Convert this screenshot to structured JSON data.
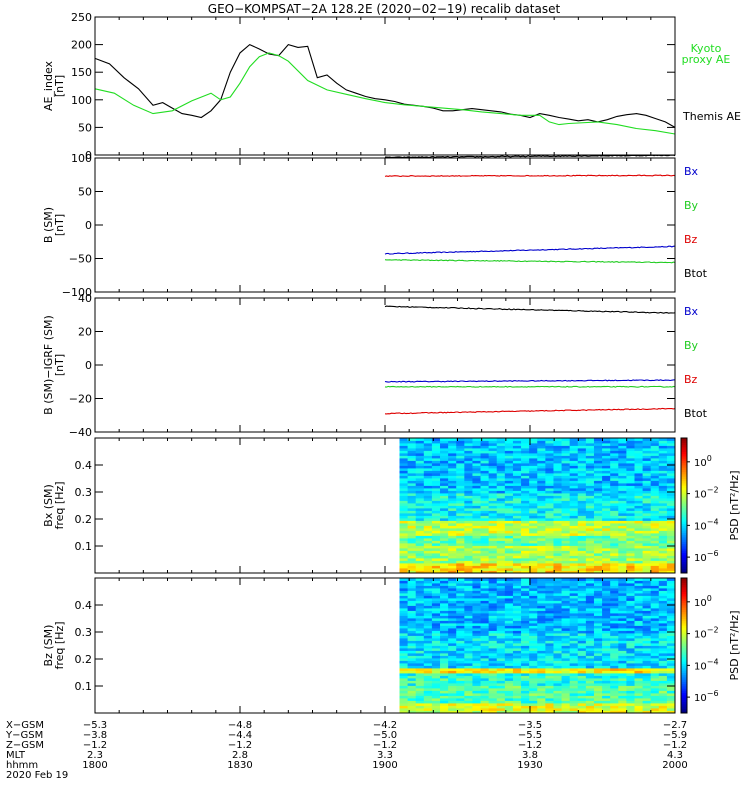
{
  "title": "GEO−KOMPSAT−2A 128.2E (2020−02−19) recalib dataset",
  "panels": [
    {
      "id": "ae",
      "ylabel": [
        "AE_index",
        "[nT]"
      ],
      "yticks": [
        "0",
        "50",
        "100",
        "150",
        "200",
        "250"
      ],
      "ylim": [
        0,
        250
      ],
      "legend": [
        {
          "text": "Kyoto",
          "color": "#22dd22"
        },
        {
          "text": "proxy AE",
          "color": "#22dd22"
        },
        {
          "text": "Themis AE",
          "color": "#000000"
        }
      ]
    },
    {
      "id": "bsm",
      "ylabel": [
        "B (SM)",
        "[nT]"
      ],
      "yticks": [
        "−100",
        "−50",
        "0",
        "50",
        "100"
      ],
      "ylim": [
        -100,
        100
      ],
      "legend": [
        {
          "text": "Bx",
          "color": "#0000cc"
        },
        {
          "text": "By",
          "color": "#22cc22"
        },
        {
          "text": "Bz",
          "color": "#dd0000"
        },
        {
          "text": "Btot",
          "color": "#000000"
        }
      ]
    },
    {
      "id": "bigrf",
      "ylabel": [
        "B (SM)−IGRF (SM)",
        "[nT]"
      ],
      "yticks": [
        "−40",
        "−20",
        "0",
        "20",
        "40"
      ],
      "ylim": [
        -40,
        40
      ],
      "legend": [
        {
          "text": "Bx",
          "color": "#0000cc"
        },
        {
          "text": "By",
          "color": "#22cc22"
        },
        {
          "text": "Bz",
          "color": "#dd0000"
        },
        {
          "text": "Btot",
          "color": "#000000"
        }
      ]
    },
    {
      "id": "specx",
      "ylabel": [
        "Bx (SM)",
        "freq [Hz]"
      ],
      "yticks": [
        "0.1",
        "0.2",
        "0.3",
        "0.4"
      ],
      "ylim": [
        0,
        0.5
      ]
    },
    {
      "id": "specz",
      "ylabel": [
        "Bz (SM)",
        "freq [Hz]"
      ],
      "yticks": [
        "0.1",
        "0.2",
        "0.3",
        "0.4"
      ],
      "ylim": [
        0,
        0.5
      ]
    }
  ],
  "colorbar": {
    "label": "PSD [nT²/Hz]",
    "ticks": [
      {
        "base": "10",
        "exp": "0",
        "value": 0
      },
      {
        "base": "10",
        "exp": "−2",
        "value": -2
      },
      {
        "base": "10",
        "exp": "−4",
        "value": -4
      },
      {
        "base": "10",
        "exp": "−6",
        "value": -6
      }
    ],
    "range": [
      -7,
      1.5
    ]
  },
  "ephemeris": {
    "row_labels": [
      "X−GSM",
      "Y−GSM",
      "Z−GSM",
      "MLT",
      "hhmm",
      "2020 Feb 19"
    ],
    "columns": [
      [
        "−5.3",
        "−3.8",
        "−1.2",
        "2.3",
        "1800"
      ],
      [
        "−4.8",
        "−4.4",
        "−1.2",
        "2.8",
        "1830"
      ],
      [
        "−4.2",
        "−5.0",
        "−1.2",
        "3.3",
        "1900"
      ],
      [
        "−3.5",
        "−5.5",
        "−1.2",
        "3.8",
        "1930"
      ],
      [
        "−2.7",
        "−5.9",
        "−1.2",
        "4.3",
        "2000"
      ]
    ]
  },
  "chart_data": [
    {
      "type": "line",
      "x_range_minutes_after_1800": [
        0,
        120
      ],
      "series": [
        {
          "name": "Themis AE",
          "color": "#000000",
          "x": [
            0,
            3,
            6,
            9,
            12,
            14,
            16,
            18,
            20,
            22,
            24,
            26,
            28,
            30,
            32,
            34,
            36,
            38,
            40,
            42,
            44,
            46,
            48,
            50,
            52,
            54,
            56,
            58,
            60,
            62,
            64,
            66,
            68,
            70,
            72,
            74,
            76,
            78,
            80,
            82,
            84,
            86,
            88,
            90,
            92,
            94,
            96,
            98,
            100,
            102,
            104,
            106,
            108,
            110,
            112,
            114,
            116,
            118,
            120
          ],
          "y": [
            175,
            165,
            140,
            120,
            90,
            95,
            85,
            75,
            72,
            68,
            80,
            100,
            150,
            185,
            200,
            192,
            183,
            180,
            200,
            195,
            197,
            140,
            145,
            130,
            118,
            112,
            106,
            102,
            100,
            97,
            92,
            90,
            88,
            85,
            80,
            80,
            82,
            84,
            82,
            80,
            78,
            74,
            72,
            68,
            75,
            72,
            68,
            65,
            62,
            64,
            60,
            64,
            70,
            73,
            75,
            72,
            66,
            60,
            50
          ]
        },
        {
          "name": "proxy AE",
          "color": "#22dd22",
          "x": [
            0,
            4,
            8,
            12,
            16,
            20,
            24,
            26,
            28,
            30,
            32,
            34,
            36,
            38,
            40,
            44,
            48,
            52,
            56,
            60,
            64,
            68,
            72,
            76,
            80,
            84,
            88,
            90,
            92,
            94,
            96,
            98,
            100,
            104,
            108,
            112,
            116,
            120
          ],
          "y": [
            120,
            112,
            90,
            75,
            80,
            98,
            112,
            100,
            105,
            130,
            160,
            178,
            185,
            180,
            170,
            135,
            118,
            110,
            102,
            95,
            91,
            88,
            85,
            82,
            78,
            75,
            72,
            72,
            72,
            60,
            55,
            57,
            58,
            60,
            55,
            48,
            44,
            38
          ]
        }
      ]
    },
    {
      "type": "line",
      "data_start_minutes_after_1800": 60,
      "series": [
        {
          "name": "Bx",
          "color": "#0000cc",
          "x": [
            60,
            120
          ],
          "y": [
            -43,
            -32
          ]
        },
        {
          "name": "By",
          "color": "#22cc22",
          "x": [
            60,
            120
          ],
          "y": [
            -52,
            -56
          ]
        },
        {
          "name": "Bz",
          "color": "#dd0000",
          "x": [
            60,
            120
          ],
          "y": [
            73,
            74
          ]
        },
        {
          "name": "Btot",
          "color": "#000000",
          "x": [
            60,
            120
          ],
          "y": [
            101,
            104
          ]
        }
      ]
    },
    {
      "type": "line",
      "data_start_minutes_after_1800": 60,
      "series": [
        {
          "name": "Bx",
          "color": "#0000cc",
          "x": [
            60,
            120
          ],
          "y": [
            -10,
            -9
          ]
        },
        {
          "name": "By",
          "color": "#22cc22",
          "x": [
            60,
            120
          ],
          "y": [
            -13,
            -13
          ]
        },
        {
          "name": "Bz",
          "color": "#dd0000",
          "x": [
            60,
            120
          ],
          "y": [
            -29,
            -26
          ]
        },
        {
          "name": "Btot",
          "color": "#000000",
          "x": [
            60,
            120
          ],
          "y": [
            35,
            31
          ]
        }
      ]
    },
    {
      "type": "heatmap",
      "name": "Bx (SM) spectrogram",
      "data_start_minutes_after_1800": 63,
      "freq_range": [
        0,
        0.5
      ],
      "band_log10_psd": [
        {
          "f_max": 0.04,
          "value": -1.5
        },
        {
          "f_max": 0.1,
          "value": -2.5
        },
        {
          "f_max": 0.14,
          "value": -3.0
        },
        {
          "f_max": 0.19,
          "value": -2.2
        },
        {
          "f_max": 0.3,
          "value": -3.8
        },
        {
          "f_max": 0.5,
          "value": -4.3
        }
      ]
    },
    {
      "type": "heatmap",
      "name": "Bz (SM) spectrogram",
      "data_start_minutes_after_1800": 63,
      "freq_range": [
        0,
        0.5
      ],
      "band_log10_psd": [
        {
          "f_max": 0.04,
          "value": -2.0
        },
        {
          "f_max": 0.1,
          "value": -3.2
        },
        {
          "f_max": 0.15,
          "value": -3.5
        },
        {
          "f_max": 0.17,
          "value": -1.6
        },
        {
          "f_max": 0.3,
          "value": -4.0
        },
        {
          "f_max": 0.5,
          "value": -4.4
        }
      ]
    }
  ]
}
